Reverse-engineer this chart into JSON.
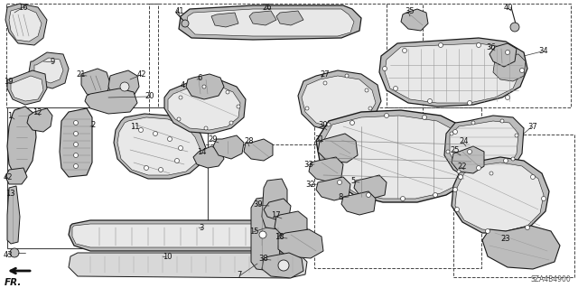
{
  "diagram_code": "SZA4B4900",
  "bg_color": "#ffffff",
  "fig_width": 6.4,
  "fig_height": 3.19,
  "dpi": 100,
  "line_color": "#1a1a1a",
  "part_fill": "#d8d8d8",
  "part_fill2": "#bcbcbc",
  "part_fill3": "#e8e8e8",
  "part_edge": "#1a1a1a",
  "box_color": "#444444",
  "label_fontsize": 6.0,
  "code_fontsize": 5.5
}
